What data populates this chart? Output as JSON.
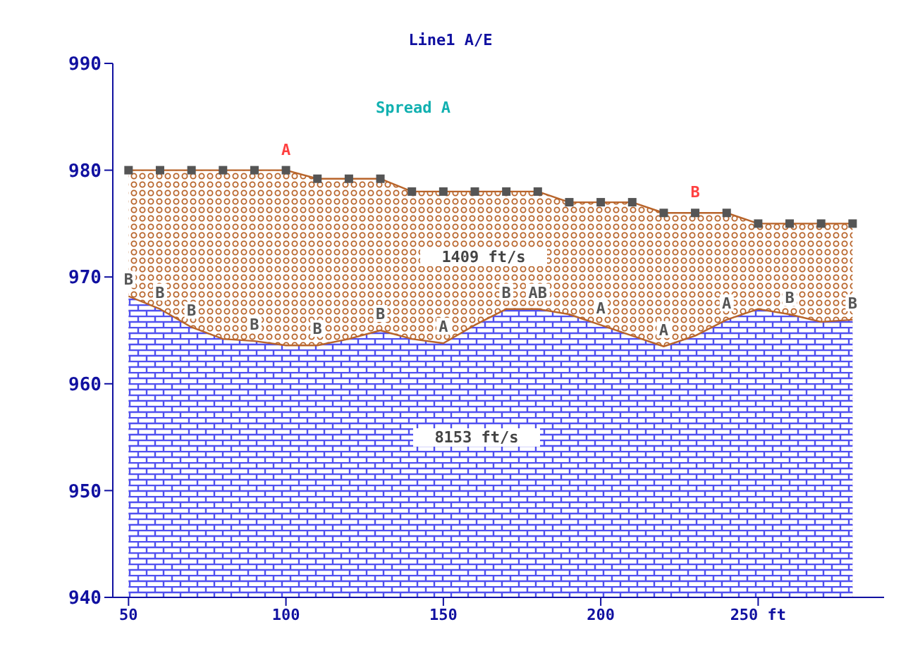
{
  "chart_data": {
    "type": "area",
    "title": "Line1 A/E",
    "x": [
      50,
      60,
      70,
      80,
      90,
      100,
      110,
      120,
      130,
      140,
      150,
      160,
      170,
      180,
      190,
      200,
      210,
      220,
      230,
      240,
      250,
      260,
      270,
      280
    ],
    "series": [
      {
        "color": "#b8642a",
        "marker": "square",
        "values": [
          980,
          980,
          980,
          980,
          980,
          980,
          979.2,
          979.2,
          979.2,
          978,
          978,
          978,
          978,
          978,
          977,
          977,
          977,
          976,
          976,
          976,
          975,
          975,
          975,
          975
        ]
      },
      {
        "color": "#5050f0",
        "marker": "none",
        "values": [
          968.2,
          967,
          965.3,
          964.2,
          964,
          963.6,
          963.6,
          964.2,
          965,
          964.2,
          963.8,
          965.5,
          967,
          967,
          966.5,
          965.5,
          964.5,
          963.5,
          964.5,
          966,
          967,
          966.5,
          965.8,
          966
        ]
      }
    ],
    "xlim": [
      45,
      290
    ],
    "xticks": [
      50,
      100,
      150,
      200,
      {
        "value": 250,
        "label": "250 ft"
      }
    ],
    "ylim": [
      940,
      990
    ],
    "yticks": [
      940,
      950,
      960,
      970,
      980,
      990
    ],
    "grid": false,
    "legend": false,
    "annotations": [
      "Spread A",
      "1409 ft/s",
      "8153 ft/s",
      {
        "text": "A",
        "x": 100,
        "y": 980
      },
      {
        "text": "B",
        "x": 230,
        "y": 976
      },
      {
        "text": "B",
        "x": 50,
        "y": 968.2
      },
      {
        "text": "B",
        "x": 60,
        "y": 967
      },
      {
        "text": "B",
        "x": 70,
        "y": 965.3
      },
      {
        "text": "B",
        "x": 90,
        "y": 964
      },
      {
        "text": "B",
        "x": 110,
        "y": 963.6
      },
      {
        "text": "B",
        "x": 130,
        "y": 965
      },
      {
        "text": "A",
        "x": 150,
        "y": 963.8
      },
      {
        "text": "B",
        "x": 170,
        "y": 967
      },
      {
        "text": "AB",
        "x": 180,
        "y": 967
      },
      {
        "text": "A",
        "x": 200,
        "y": 965.5
      },
      {
        "text": "A",
        "x": 220,
        "y": 963.5
      },
      {
        "text": "A",
        "x": 240,
        "y": 966
      },
      {
        "text": "B",
        "x": 260,
        "y": 966.5
      },
      {
        "text": "B",
        "x": 280,
        "y": 966
      }
    ]
  }
}
